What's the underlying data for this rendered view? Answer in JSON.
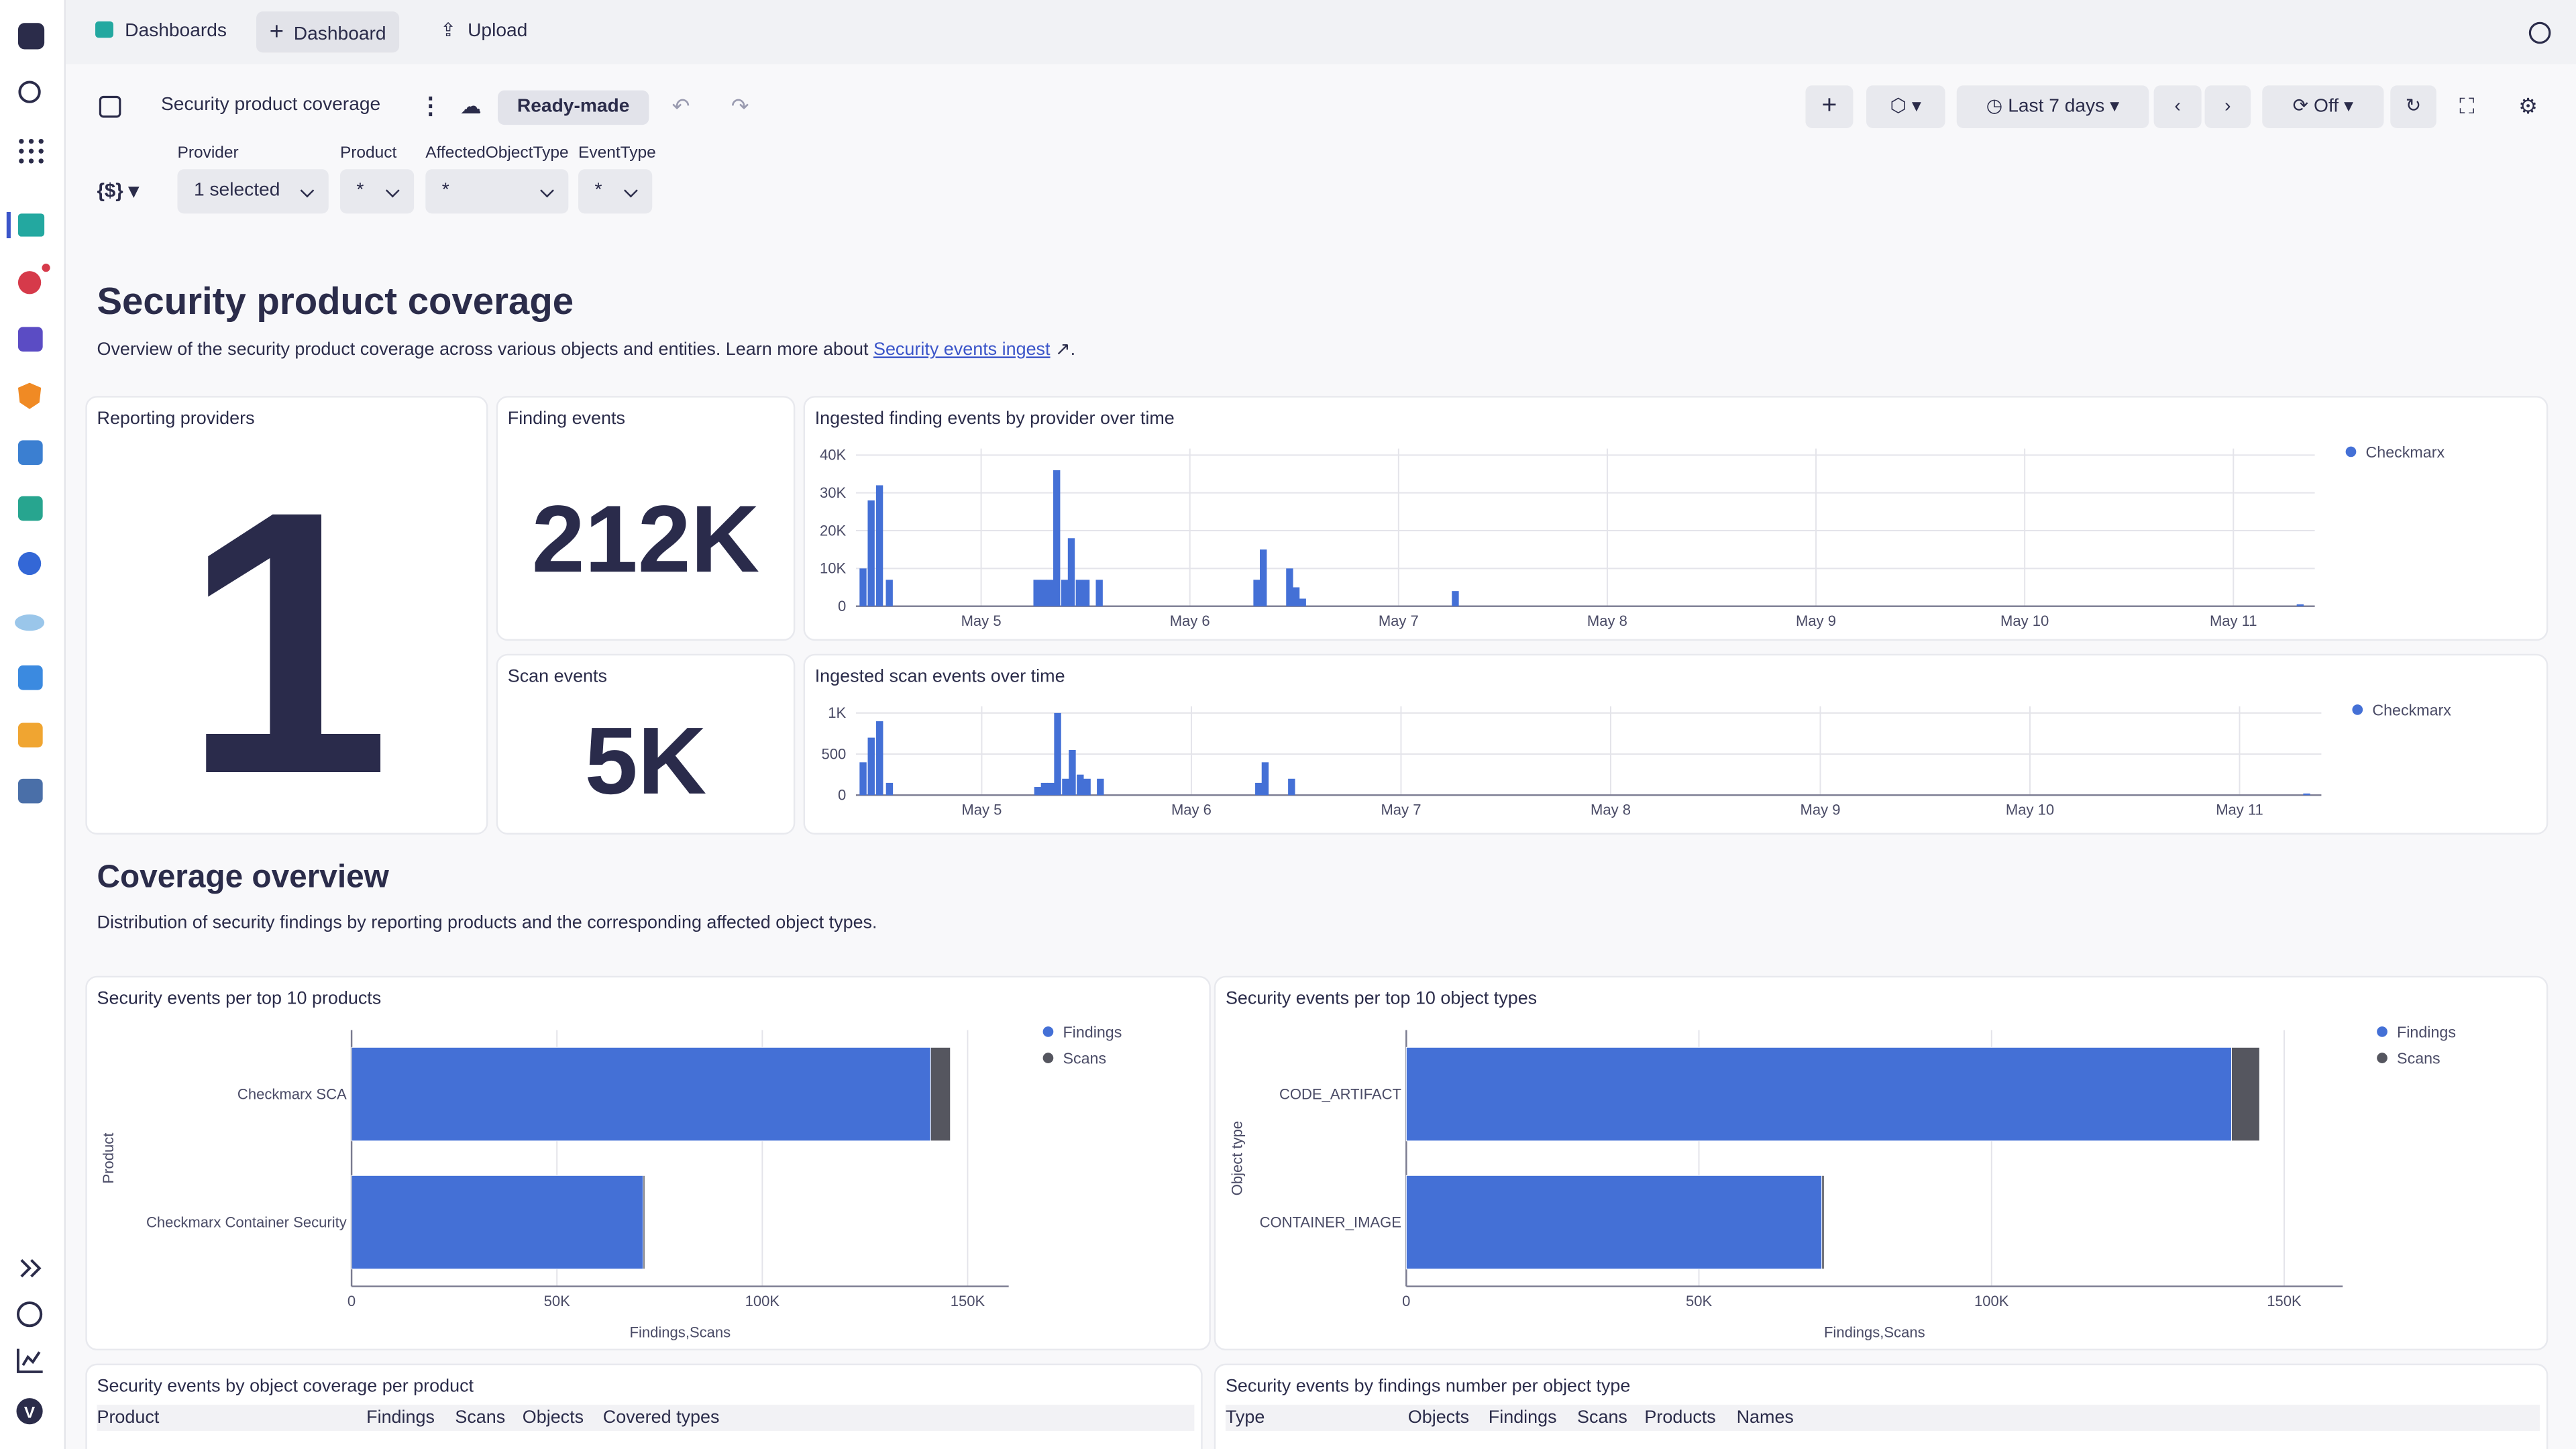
{
  "sidebar": {
    "avatar": "V"
  },
  "topbar": {
    "tabs": [
      "Dashboards",
      "Dashboard",
      "Upload"
    ]
  },
  "toolbar": {
    "title": "Security product coverage",
    "badge": "Ready-made",
    "timeframe": "Last 7 days",
    "refresh": "Off"
  },
  "filters": {
    "variable_icon": "{$}",
    "items": [
      {
        "label": "Provider",
        "value": "1 selected"
      },
      {
        "label": "Product",
        "value": "*"
      },
      {
        "label": "AffectedObjectType",
        "value": "*"
      },
      {
        "label": "EventType",
        "value": "*"
      }
    ]
  },
  "header": {
    "title": "Security product coverage",
    "description": "Overview of the security product coverage across various objects and entities. Learn more about ",
    "link": "Security events ingest",
    "end": "."
  },
  "tiles": [
    {
      "title": "Reporting providers",
      "value": "1"
    },
    {
      "title": "Finding events",
      "value": "212K"
    },
    {
      "title": "Scan events",
      "value": "5K"
    }
  ],
  "section": {
    "title": "Coverage overview",
    "description": "Distribution of security findings by reporting products and the corresponding affected object types."
  },
  "chart_data": [
    {
      "type": "bar",
      "title": "Ingested finding events by provider over time",
      "x": [
        4.434,
        4.473,
        4.513,
        4.56,
        5.267,
        5.299,
        5.33,
        5.362,
        5.4,
        5.432,
        5.47,
        5.503,
        5.566,
        6.321,
        6.352,
        6.478,
        6.509,
        6.54,
        7.272,
        11.32
      ],
      "series": [
        {
          "name": "Checkmarx",
          "color": "#4470d6",
          "values": [
            10000,
            28000,
            32000,
            7000,
            7000,
            7000,
            7000,
            36000,
            7000,
            18000,
            7000,
            7000,
            7000,
            7000,
            15000,
            10000,
            5000,
            2000,
            4000,
            500
          ]
        }
      ],
      "xlim": [
        4.4,
        11.39
      ],
      "xticks": [
        {
          "value": 5,
          "label": "May 5"
        },
        {
          "value": 6,
          "label": "May 6"
        },
        {
          "value": 7,
          "label": "May 7"
        },
        {
          "value": 8,
          "label": "May 8"
        },
        {
          "value": 9,
          "label": "May 9"
        },
        {
          "value": 10,
          "label": "May 10"
        },
        {
          "value": 11,
          "label": "May 11"
        }
      ],
      "ylim": [
        0,
        40000
      ],
      "yticks": [
        0,
        {
          "value": 10000,
          "label": "10K"
        },
        {
          "value": 20000,
          "label": "20K"
        },
        {
          "value": 30000,
          "label": "30K"
        },
        {
          "value": 40000,
          "label": "40K"
        }
      ],
      "grid": true,
      "legend": "right"
    },
    {
      "type": "bar",
      "title": "Ingested scan events over time",
      "x": [
        4.434,
        4.473,
        4.513,
        4.56,
        5.267,
        5.299,
        5.33,
        5.362,
        5.4,
        5.432,
        5.47,
        5.503,
        5.566,
        6.321,
        6.352,
        6.478,
        11.32
      ],
      "series": [
        {
          "name": "Checkmarx",
          "color": "#4470d6",
          "values": [
            400,
            700,
            900,
            150,
            100,
            150,
            150,
            1000,
            200,
            550,
            250,
            200,
            200,
            150,
            400,
            200,
            20
          ]
        }
      ],
      "xlim": [
        4.4,
        11.39
      ],
      "xticks": [
        {
          "value": 5,
          "label": "May 5"
        },
        {
          "value": 6,
          "label": "May 6"
        },
        {
          "value": 7,
          "label": "May 7"
        },
        {
          "value": 8,
          "label": "May 8"
        },
        {
          "value": 9,
          "label": "May 9"
        },
        {
          "value": 10,
          "label": "May 10"
        },
        {
          "value": 11,
          "label": "May 11"
        }
      ],
      "ylim": [
        0,
        1000
      ],
      "yticks": [
        0,
        500,
        {
          "value": 1000,
          "label": "1K"
        }
      ],
      "grid": true,
      "legend": "right"
    },
    {
      "type": "hbar",
      "title": "Security events per top 10 products",
      "categories": [
        "Checkmarx SCA",
        "Checkmarx Container Security"
      ],
      "series": [
        {
          "name": "Findings",
          "color": "#4470d6",
          "values": [
            141000,
            71000
          ]
        },
        {
          "name": "Scans",
          "color": "#55565f",
          "values": [
            4800,
            400
          ]
        }
      ],
      "stacked": true,
      "xlim": [
        0,
        160000
      ],
      "xticks": [
        0,
        {
          "value": 50000,
          "label": "50K"
        },
        {
          "value": 100000,
          "label": "100K"
        },
        {
          "value": 150000,
          "label": "150K"
        }
      ],
      "xlabel": "Findings,Scans",
      "ylabel": "Product",
      "grid": true,
      "legend": "right"
    },
    {
      "type": "hbar",
      "title": "Security events per top 10 object types",
      "categories": [
        "CODE_ARTIFACT",
        "CONTAINER_IMAGE"
      ],
      "series": [
        {
          "name": "Findings",
          "color": "#4470d6",
          "values": [
            141000,
            71000
          ]
        },
        {
          "name": "Scans",
          "color": "#55565f",
          "values": [
            4800,
            400
          ]
        }
      ],
      "stacked": true,
      "xlim": [
        0,
        160000
      ],
      "xticks": [
        0,
        {
          "value": 50000,
          "label": "50K"
        },
        {
          "value": 100000,
          "label": "100K"
        },
        {
          "value": 150000,
          "label": "150K"
        }
      ],
      "xlabel": "Findings,Scans",
      "ylabel": "Object type",
      "grid": true,
      "legend": "right"
    }
  ],
  "tables": [
    {
      "title": "Security events by object coverage per product",
      "columns": [
        "Product",
        "Findings",
        "Scans",
        "Objects",
        "Covered types"
      ]
    },
    {
      "title": "Security events by findings number per object type",
      "columns": [
        "Type",
        "Objects",
        "Findings",
        "Scans",
        "Products",
        "Names"
      ]
    }
  ]
}
